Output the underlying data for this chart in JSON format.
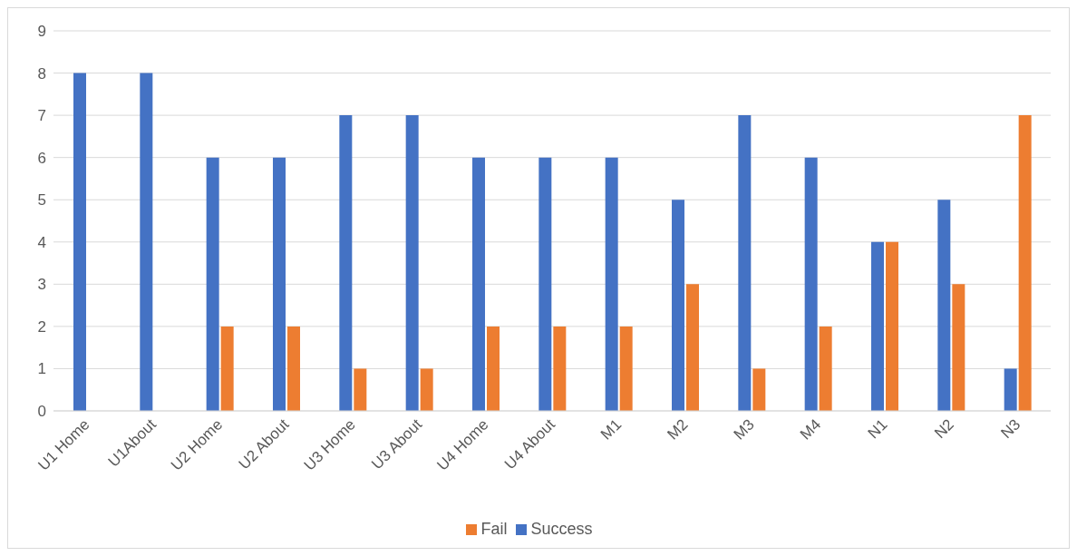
{
  "chart_data": {
    "type": "bar",
    "categories": [
      "U1 Home",
      "U1About",
      "U2 Home",
      "U2 About",
      "U3 Home",
      "U3 About",
      "U4 Home",
      "U4 About",
      "M1",
      "M2",
      "M3",
      "M4",
      "N1",
      "N2",
      "N3"
    ],
    "series": [
      {
        "name": "Success",
        "color": "#4472c4",
        "values": [
          8,
          8,
          6,
          6,
          7,
          7,
          6,
          6,
          6,
          5,
          7,
          6,
          4,
          5,
          1
        ]
      },
      {
        "name": "Fail",
        "color": "#ed7d31",
        "values": [
          0,
          0,
          2,
          2,
          1,
          1,
          2,
          2,
          2,
          3,
          1,
          2,
          4,
          3,
          7
        ]
      }
    ],
    "ylim": [
      0,
      9
    ],
    "yticks": [
      0,
      1,
      2,
      3,
      4,
      5,
      6,
      7,
      8,
      9
    ],
    "grid": "y",
    "legend": "bottom"
  }
}
